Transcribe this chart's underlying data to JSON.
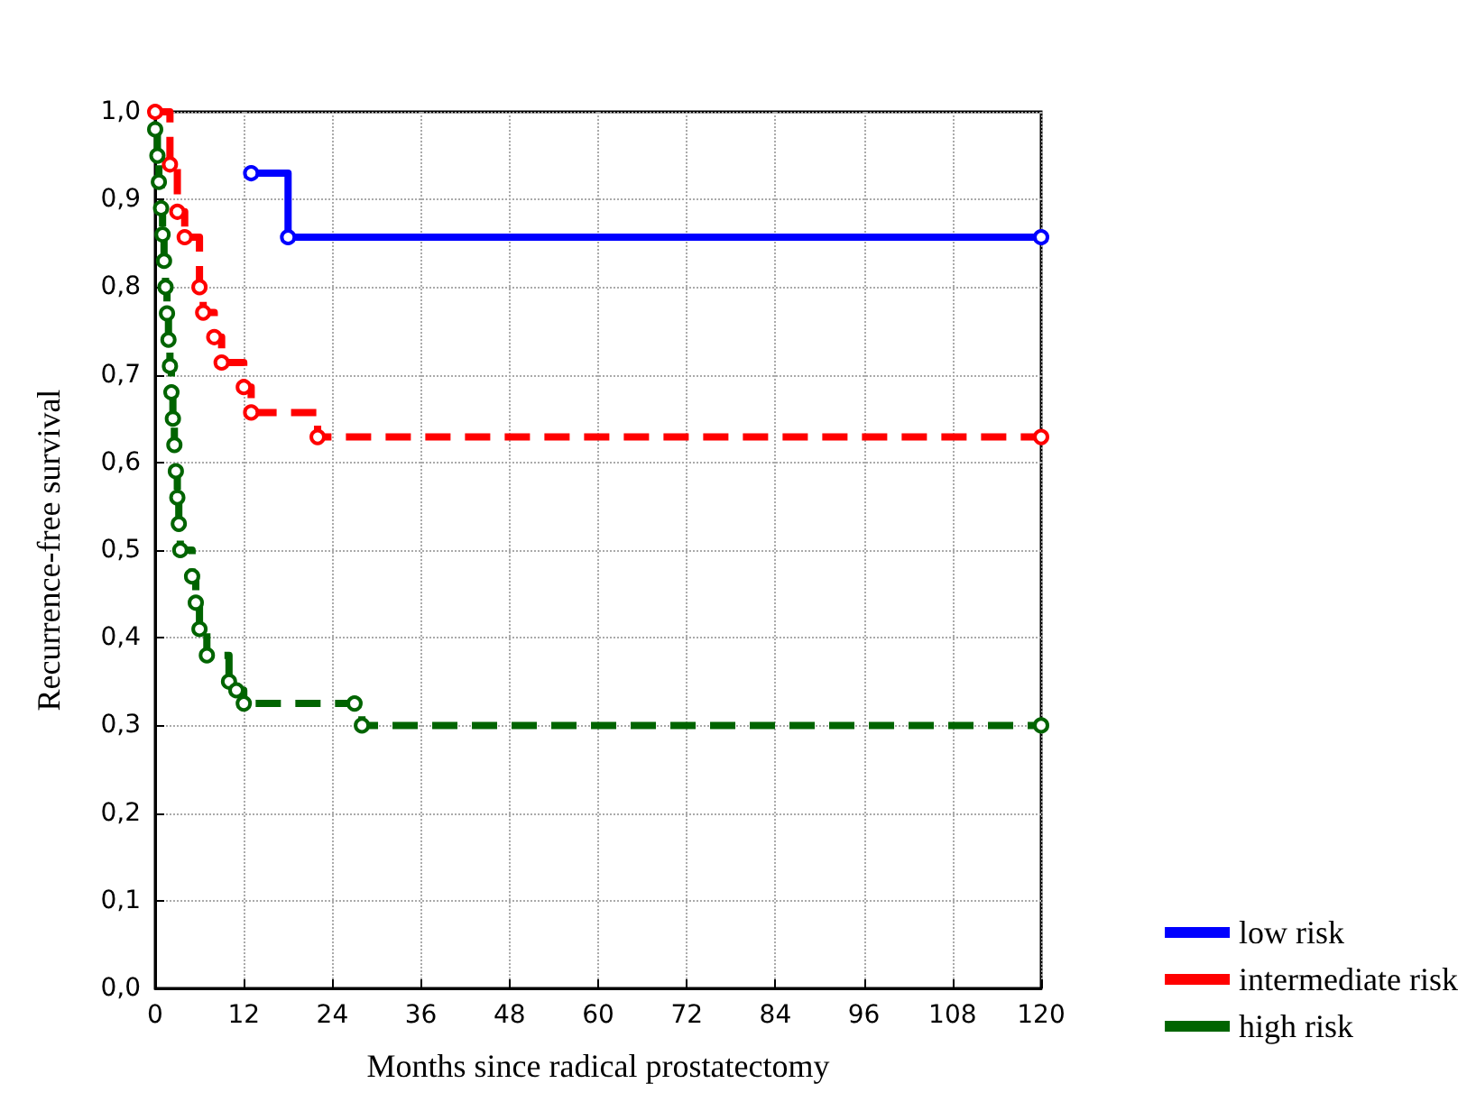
{
  "chart_data": {
    "type": "step",
    "xlabel": "Months since radical prostatectomy",
    "ylabel": "Recurrence-free survival",
    "xlim": [
      0,
      120
    ],
    "xticks": [
      0,
      12,
      24,
      36,
      48,
      60,
      72,
      84,
      96,
      108,
      120
    ],
    "ylim": [
      0,
      1
    ],
    "yticks": [
      {
        "value": 0,
        "label": "0,0"
      },
      {
        "value": 0.1,
        "label": "0,1"
      },
      {
        "value": 0.2,
        "label": "0,2"
      },
      {
        "value": 0.3,
        "label": "0,3"
      },
      {
        "value": 0.4,
        "label": "0,4"
      },
      {
        "value": 0.5,
        "label": "0,5"
      },
      {
        "value": 0.6,
        "label": "0,6"
      },
      {
        "value": 0.7,
        "label": "0,7"
      },
      {
        "value": 0.8,
        "label": "0,8"
      },
      {
        "value": 0.9,
        "label": "0,9"
      },
      {
        "value": 1,
        "label": "1,0"
      }
    ],
    "grid": true,
    "legend": "bottom right",
    "marker": "circle",
    "series": [
      {
        "name": "low risk",
        "color": "#0000ff",
        "line_style": "solid",
        "x": [
          13,
          18,
          120
        ],
        "values": [
          0.93,
          0.857,
          0.857
        ]
      },
      {
        "name": "intermediate risk",
        "color": "#ff0000",
        "line_style": "dashed",
        "x": [
          0,
          2,
          3,
          4,
          6,
          6.5,
          8,
          9,
          12,
          13,
          22,
          120
        ],
        "values": [
          1,
          0.94,
          0.886,
          0.857,
          0.8,
          0.771,
          0.743,
          0.714,
          0.686,
          0.657,
          0.629,
          0.629
        ]
      },
      {
        "name": "high risk",
        "color": "#006400",
        "line_style": "dashed",
        "x": [
          0,
          0.3,
          0.5,
          0.8,
          1,
          1.2,
          1.4,
          1.6,
          1.8,
          2,
          2.2,
          2.4,
          2.6,
          2.8,
          3,
          3.2,
          3.4,
          5,
          5.5,
          6,
          7,
          10,
          11,
          12,
          27,
          28,
          120
        ],
        "values": [
          0.98,
          0.95,
          0.92,
          0.89,
          0.86,
          0.83,
          0.8,
          0.77,
          0.74,
          0.71,
          0.68,
          0.65,
          0.62,
          0.59,
          0.56,
          0.53,
          0.5,
          0.47,
          0.44,
          0.41,
          0.38,
          0.35,
          0.34,
          0.325,
          0.325,
          0.3,
          0.3
        ]
      }
    ]
  }
}
